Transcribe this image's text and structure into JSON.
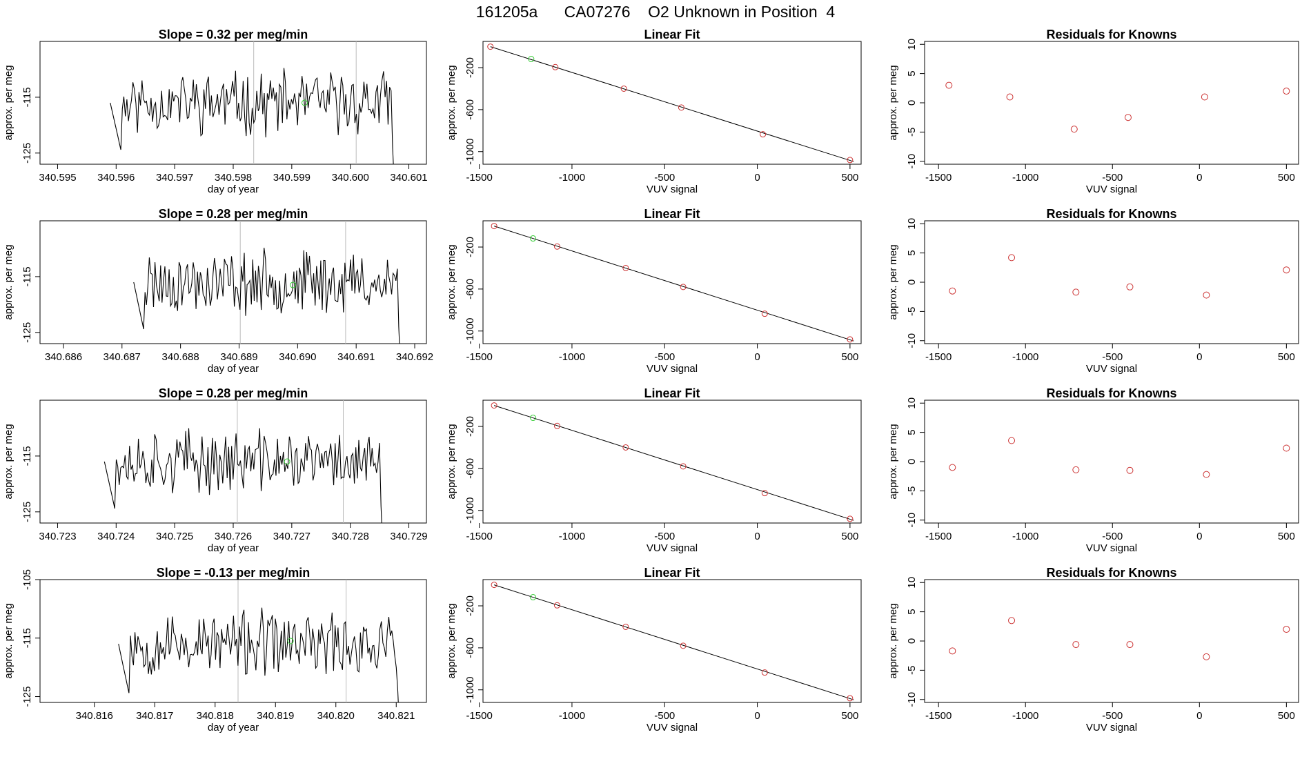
{
  "page": {
    "title": "161205a      CA07276    O2 Unknown in Position  4"
  },
  "colors": {
    "trace": "#000000",
    "marker_unknown": "#33cc33",
    "marker_known": "#cc3333",
    "vline": "#bbbbbb",
    "fit_line": "#000000"
  },
  "chart_data": [
    {
      "type": "line",
      "title": "Slope =  0.32  per meg/min",
      "xlabel": "day of year",
      "ylabel": "approx. per meg",
      "xlim": [
        340.5947,
        340.6013
      ],
      "ylim": [
        -127,
        -105
      ],
      "xticks": [
        "340.595",
        "340.596",
        "340.597",
        "340.598",
        "340.599",
        "340.600",
        "340.601"
      ],
      "yticks": [
        "-115",
        "-125"
      ],
      "vlines": [
        340.59835,
        340.6001
      ],
      "seed": 11,
      "trace_start": 340.5959,
      "trace_end": 340.6008,
      "unknown_point": {
        "x": 340.59922,
        "y": -116
      }
    },
    {
      "type": "scatter",
      "title": "Linear Fit",
      "xlabel": "VUV signal",
      "ylabel": "approx. per meg",
      "xlim": [
        -1480,
        560
      ],
      "ylim": [
        -1120,
        50
      ],
      "xticks": [
        "-1500",
        "-1000",
        "-500",
        "0",
        "500"
      ],
      "yticks": [
        "-200",
        "-600",
        "-1000"
      ],
      "fit": [
        [
          -1440,
          0
        ],
        [
          520,
          -1095
        ]
      ],
      "known_points": [
        [
          -1440,
          0
        ],
        [
          -1090,
          -195
        ],
        [
          -720,
          -400
        ],
        [
          -410,
          -580
        ],
        [
          30,
          -835
        ],
        [
          500,
          -1080
        ]
      ],
      "unknown_point": [
        -1220,
        -118
      ]
    },
    {
      "type": "scatter",
      "title": "Residuals for Knowns",
      "xlabel": "VUV signal",
      "ylabel": "approx. per meg",
      "xlim": [
        -1580,
        570
      ],
      "ylim": [
        -10.5,
        10.5
      ],
      "xticks": [
        "-1500",
        "-1000",
        "-500",
        "0",
        "500"
      ],
      "yticks": [
        "10",
        "5",
        "0",
        "-5",
        "-10"
      ],
      "points": [
        [
          -1440,
          3
        ],
        [
          -1090,
          1
        ],
        [
          -720,
          -4.5
        ],
        [
          -410,
          -2.5
        ],
        [
          30,
          1
        ],
        [
          500,
          2
        ]
      ]
    },
    {
      "type": "line",
      "title": "Slope =  0.28  per meg/min",
      "xlabel": "day of year",
      "ylabel": "approx. per meg",
      "xlim": [
        340.6856,
        340.6922
      ],
      "ylim": [
        -127,
        -105
      ],
      "xticks": [
        "340.686",
        "340.687",
        "340.688",
        "340.689",
        "340.690",
        "340.691",
        "340.692"
      ],
      "yticks": [
        "-115",
        "-125"
      ],
      "vlines": [
        340.68902,
        340.69082
      ],
      "seed": 23,
      "trace_start": 340.6872,
      "trace_end": 340.6918,
      "unknown_point": {
        "x": 340.68992,
        "y": -116.5
      }
    },
    {
      "type": "scatter",
      "title": "Linear Fit",
      "xlabel": "VUV signal",
      "ylabel": "approx. per meg",
      "xlim": [
        -1480,
        560
      ],
      "ylim": [
        -1120,
        50
      ],
      "xticks": [
        "-1500",
        "-1000",
        "-500",
        "0",
        "500"
      ],
      "yticks": [
        "-200",
        "-600",
        "-1000"
      ],
      "fit": [
        [
          -1420,
          0
        ],
        [
          520,
          -1095
        ]
      ],
      "known_points": [
        [
          -1420,
          0
        ],
        [
          -1080,
          -195
        ],
        [
          -710,
          -400
        ],
        [
          -400,
          -580
        ],
        [
          40,
          -835
        ],
        [
          500,
          -1080
        ]
      ],
      "unknown_point": [
        -1210,
        -118
      ]
    },
    {
      "type": "scatter",
      "title": "Residuals for Knowns",
      "xlabel": "VUV signal",
      "ylabel": "approx. per meg",
      "xlim": [
        -1580,
        570
      ],
      "ylim": [
        -10.5,
        10.5
      ],
      "xticks": [
        "-1500",
        "-1000",
        "-500",
        "0",
        "500"
      ],
      "yticks": [
        "10",
        "5",
        "0",
        "-5",
        "-10"
      ],
      "points": [
        [
          -1420,
          -1.5
        ],
        [
          -1080,
          4.2
        ],
        [
          -710,
          -1.7
        ],
        [
          -400,
          -0.8
        ],
        [
          40,
          -2.2
        ],
        [
          500,
          2.1
        ]
      ]
    },
    {
      "type": "line",
      "title": "Slope =  0.28  per meg/min",
      "xlabel": "day of year",
      "ylabel": "approx. per meg",
      "xlim": [
        340.7227,
        340.7293
      ],
      "ylim": [
        -127,
        -105
      ],
      "xticks": [
        "340.723",
        "340.724",
        "340.725",
        "340.726",
        "340.727",
        "340.728",
        "340.729"
      ],
      "yticks": [
        "-115",
        "-125"
      ],
      "vlines": [
        340.72607,
        340.72788
      ],
      "seed": 37,
      "trace_start": 340.7238,
      "trace_end": 340.7286,
      "unknown_point": {
        "x": 340.72692,
        "y": -116
      }
    },
    {
      "type": "scatter",
      "title": "Linear Fit",
      "xlabel": "VUV signal",
      "ylabel": "approx. per meg",
      "xlim": [
        -1480,
        560
      ],
      "ylim": [
        -1120,
        50
      ],
      "xticks": [
        "-1500",
        "-1000",
        "-500",
        "0",
        "500"
      ],
      "yticks": [
        "-200",
        "-600",
        "-1000"
      ],
      "fit": [
        [
          -1420,
          0
        ],
        [
          520,
          -1095
        ]
      ],
      "known_points": [
        [
          -1420,
          0
        ],
        [
          -1080,
          -195
        ],
        [
          -710,
          -400
        ],
        [
          -400,
          -580
        ],
        [
          40,
          -835
        ],
        [
          500,
          -1080
        ]
      ],
      "unknown_point": [
        -1210,
        -118
      ]
    },
    {
      "type": "scatter",
      "title": "Residuals for Knowns",
      "xlabel": "VUV signal",
      "ylabel": "approx. per meg",
      "xlim": [
        -1580,
        570
      ],
      "ylim": [
        -10.5,
        10.5
      ],
      "xticks": [
        "-1500",
        "-1000",
        "-500",
        "0",
        "500"
      ],
      "yticks": [
        "10",
        "5",
        "0",
        "-5",
        "-10"
      ],
      "points": [
        [
          -1420,
          -1
        ],
        [
          -1080,
          3.6
        ],
        [
          -710,
          -1.4
        ],
        [
          -400,
          -1.5
        ],
        [
          40,
          -2.2
        ],
        [
          500,
          2.3
        ]
      ]
    },
    {
      "type": "line",
      "title": "Slope =  -0.13  per meg/min",
      "xlabel": "day of year",
      "ylabel": "approx. per meg",
      "xlim": [
        340.8151,
        340.8215
      ],
      "ylim": [
        -126,
        -105
      ],
      "xticks": [
        "340.816",
        "340.817",
        "340.818",
        "340.819",
        "340.820",
        "340.821"
      ],
      "yticks": [
        "-105",
        "-115",
        "-125"
      ],
      "vlines": [
        340.81838,
        340.82017
      ],
      "seed": 53,
      "trace_start": 340.8164,
      "trace_end": 340.8211,
      "unknown_point": {
        "x": 340.81925,
        "y": -115.5
      }
    },
    {
      "type": "scatter",
      "title": "Linear Fit",
      "xlabel": "VUV signal",
      "ylabel": "approx. per meg",
      "xlim": [
        -1480,
        560
      ],
      "ylim": [
        -1120,
        50
      ],
      "xticks": [
        "-1500",
        "-1000",
        "-500",
        "0",
        "500"
      ],
      "yticks": [
        "-200",
        "-600",
        "-1000"
      ],
      "fit": [
        [
          -1420,
          0
        ],
        [
          520,
          -1095
        ]
      ],
      "known_points": [
        [
          -1420,
          0
        ],
        [
          -1080,
          -195
        ],
        [
          -710,
          -400
        ],
        [
          -400,
          -580
        ],
        [
          40,
          -835
        ],
        [
          500,
          -1080
        ]
      ],
      "unknown_point": [
        -1210,
        -118
      ]
    },
    {
      "type": "scatter",
      "title": "Residuals for Knowns",
      "xlabel": "VUV signal",
      "ylabel": "approx. per meg",
      "xlim": [
        -1580,
        570
      ],
      "ylim": [
        -10.5,
        10.5
      ],
      "xticks": [
        "-1500",
        "-1000",
        "-500",
        "0",
        "500"
      ],
      "yticks": [
        "10",
        "5",
        "0",
        "-5",
        "-10"
      ],
      "points": [
        [
          -1420,
          -1.7
        ],
        [
          -1080,
          3.5
        ],
        [
          -710,
          -0.6
        ],
        [
          -400,
          -0.6
        ],
        [
          40,
          -2.7
        ],
        [
          500,
          2
        ]
      ]
    }
  ]
}
